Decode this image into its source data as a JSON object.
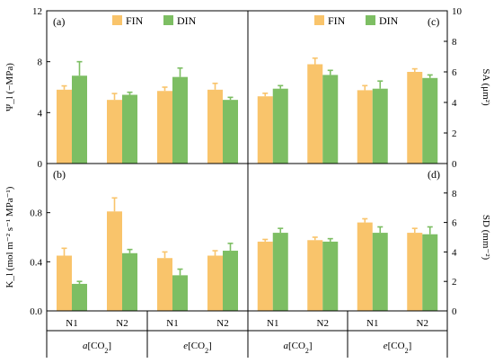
{
  "chart_data": [
    {
      "type": "bar",
      "panel": "(a)",
      "ylabel": "Ψ_l (−MPa)",
      "ylim": [
        0,
        12
      ],
      "yticks": [
        "0",
        "4",
        "8",
        "12"
      ],
      "categories": [
        "N1",
        "N2",
        "N1",
        "N2"
      ],
      "series": [
        {
          "name": "FIN",
          "values": [
            5.8,
            5.0,
            5.7,
            5.8
          ],
          "errors": [
            0.3,
            0.5,
            0.3,
            0.5
          ]
        },
        {
          "name": "DIN",
          "values": [
            6.9,
            5.4,
            6.8,
            5.0
          ],
          "errors": [
            1.1,
            0.2,
            0.7,
            0.2
          ]
        }
      ],
      "legend": "top"
    },
    {
      "type": "bar",
      "panel": "(c)",
      "ylabel": "SA (μm²)",
      "ylim": [
        0,
        10
      ],
      "yticks": [
        "0",
        "2",
        "4",
        "6",
        "8",
        "10"
      ],
      "categories": [
        "N1",
        "N2",
        "N1",
        "N2"
      ],
      "series": [
        {
          "name": "FIN",
          "values": [
            4.4,
            6.5,
            4.8,
            6.0
          ],
          "errors": [
            0.2,
            0.4,
            0.3,
            0.2
          ]
        },
        {
          "name": "DIN",
          "values": [
            4.9,
            5.8,
            4.9,
            5.6
          ],
          "errors": [
            0.2,
            0.3,
            0.5,
            0.2
          ]
        }
      ],
      "legend": "top"
    },
    {
      "type": "bar",
      "panel": "(b)",
      "ylabel": "K_l (mol m⁻² s⁻¹ MPa⁻¹)",
      "ylim": [
        0,
        1.2
      ],
      "yticks": [
        "0.0",
        "0.4",
        "0.8"
      ],
      "categories": [
        "N1",
        "N2",
        "N1",
        "N2"
      ],
      "series": [
        {
          "name": "FIN",
          "values": [
            0.45,
            0.81,
            0.43,
            0.45
          ],
          "errors": [
            0.06,
            0.11,
            0.05,
            0.04
          ]
        },
        {
          "name": "DIN",
          "values": [
            0.22,
            0.47,
            0.29,
            0.49
          ],
          "errors": [
            0.02,
            0.03,
            0.05,
            0.06
          ]
        }
      ]
    },
    {
      "type": "bar",
      "panel": "(d)",
      "ylabel": "SD (mm⁻²)",
      "ylim": [
        0,
        10
      ],
      "yticks": [
        "0",
        "2",
        "4",
        "6",
        "8"
      ],
      "categories": [
        "N1",
        "N2",
        "N1",
        "N2"
      ],
      "series": [
        {
          "name": "FIN",
          "values": [
            4.7,
            4.8,
            6.0,
            5.3
          ],
          "errors": [
            0.15,
            0.2,
            0.25,
            0.3
          ]
        },
        {
          "name": "DIN",
          "values": [
            5.3,
            4.7,
            5.3,
            5.2
          ],
          "errors": [
            0.3,
            0.2,
            0.4,
            0.5
          ]
        }
      ]
    }
  ],
  "x_groups": [
    "a[CO2]",
    "e[CO2]",
    "a[CO2]",
    "e[CO2]"
  ],
  "colors": {
    "FIN": "#F9C46B",
    "DIN": "#7DBE63",
    "axis": "#000000"
  }
}
